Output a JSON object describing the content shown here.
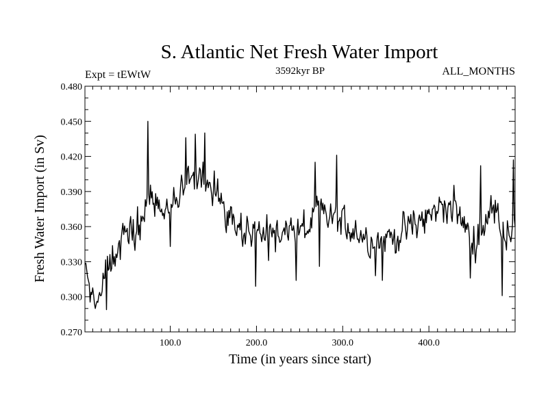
{
  "chart_data": {
    "type": "line",
    "title": "S. Atlantic Net Fresh Water Import",
    "subtitle_left": "Expt = tEWtW",
    "subtitle_center": "3592kyr BP",
    "subtitle_right": "ALL_MONTHS",
    "xlabel": "Time (in years since start)",
    "ylabel": "Fresh Water Import (in Sv)",
    "xlim": [
      1,
      500
    ],
    "ylim": [
      0.27,
      0.48
    ],
    "x_ticks": [
      100,
      200,
      300,
      400
    ],
    "x_tick_labels": [
      "100.0",
      "200.0",
      "300.0",
      "400.0"
    ],
    "y_ticks": [
      0.27,
      0.3,
      0.33,
      0.36,
      0.39,
      0.42,
      0.45,
      0.48
    ],
    "y_tick_labels": [
      "0.270",
      "0.300",
      "0.330",
      "0.360",
      "0.390",
      "0.420",
      "0.450",
      "0.480"
    ],
    "grid": false,
    "series": [
      {
        "name": "Fresh Water Import",
        "anchors": [
          [
            1,
            0.325
          ],
          [
            5,
            0.312
          ],
          [
            10,
            0.305
          ],
          [
            15,
            0.3
          ],
          [
            20,
            0.305
          ],
          [
            25,
            0.32
          ],
          [
            30,
            0.33
          ],
          [
            35,
            0.338
          ],
          [
            40,
            0.343
          ],
          [
            45,
            0.352
          ],
          [
            50,
            0.354
          ],
          [
            55,
            0.354
          ],
          [
            60,
            0.358
          ],
          [
            65,
            0.363
          ],
          [
            70,
            0.375
          ],
          [
            75,
            0.382
          ],
          [
            80,
            0.383
          ],
          [
            85,
            0.376
          ],
          [
            90,
            0.372
          ],
          [
            95,
            0.372
          ],
          [
            100,
            0.375
          ],
          [
            105,
            0.38
          ],
          [
            110,
            0.384
          ],
          [
            115,
            0.387
          ],
          [
            120,
            0.392
          ],
          [
            125,
            0.398
          ],
          [
            130,
            0.403
          ],
          [
            135,
            0.405
          ],
          [
            140,
            0.404
          ],
          [
            145,
            0.398
          ],
          [
            150,
            0.388
          ],
          [
            160,
            0.38
          ],
          [
            170,
            0.37
          ],
          [
            180,
            0.362
          ],
          [
            190,
            0.358
          ],
          [
            200,
            0.352
          ],
          [
            210,
            0.353
          ],
          [
            220,
            0.355
          ],
          [
            230,
            0.357
          ],
          [
            240,
            0.356
          ],
          [
            250,
            0.355
          ],
          [
            260,
            0.358
          ],
          [
            270,
            0.372
          ],
          [
            280,
            0.37
          ],
          [
            290,
            0.365
          ],
          [
            300,
            0.362
          ],
          [
            310,
            0.36
          ],
          [
            320,
            0.355
          ],
          [
            330,
            0.35
          ],
          [
            340,
            0.348
          ],
          [
            350,
            0.35
          ],
          [
            360,
            0.352
          ],
          [
            370,
            0.355
          ],
          [
            380,
            0.36
          ],
          [
            390,
            0.365
          ],
          [
            400,
            0.368
          ],
          [
            410,
            0.375
          ],
          [
            420,
            0.38
          ],
          [
            430,
            0.376
          ],
          [
            440,
            0.362
          ],
          [
            450,
            0.345
          ],
          [
            460,
            0.355
          ],
          [
            470,
            0.372
          ],
          [
            480,
            0.372
          ],
          [
            490,
            0.355
          ],
          [
            500,
            0.368
          ]
        ],
        "noise_amplitude": 0.011,
        "spikes": [
          [
            13,
            0.29
          ],
          [
            26,
            0.289
          ],
          [
            74,
            0.45
          ],
          [
            100,
            0.343
          ],
          [
            118,
            0.436
          ],
          [
            129,
            0.439
          ],
          [
            140,
            0.44
          ],
          [
            199,
            0.309
          ],
          [
            214,
            0.331
          ],
          [
            246,
            0.314
          ],
          [
            268,
            0.415
          ],
          [
            273,
            0.326
          ],
          [
            293,
            0.421
          ],
          [
            338,
            0.318
          ],
          [
            346,
            0.314
          ],
          [
            448,
            0.316
          ],
          [
            460,
            0.412
          ],
          [
            485,
            0.301
          ],
          [
            498,
            0.417
          ]
        ]
      }
    ]
  }
}
